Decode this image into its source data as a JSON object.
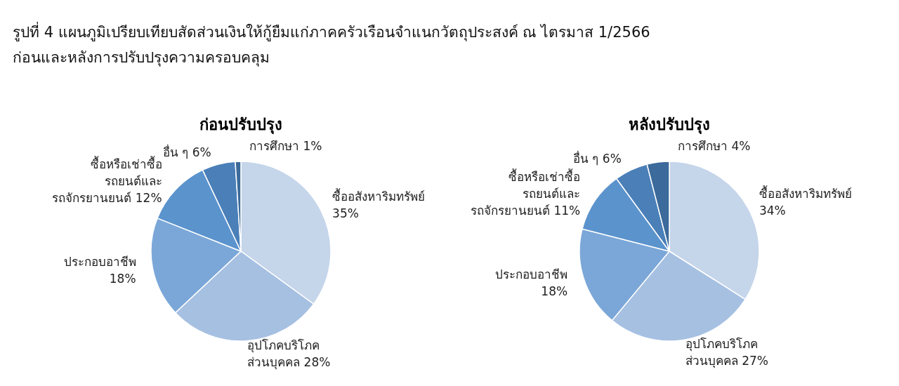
{
  "chart_data": [
    {
      "type": "pie",
      "title": "ก่อนปรับปรุง",
      "annotations": [
        "รูปที่ 4  แผนภูมิเปรียบเทียบสัดส่วนเงินให้กู้ยืมแก่ภาคครัวเรือนจำแนกวัตถุประสงค์ ณ ไตรมาส 1/2566\nก่อนและหลังการปรับปรุงความครอบคลุม"
      ],
      "categories": [
        "ซื้ออสังหาริมทรัพย์",
        "อุปโภคบริโภค\nส่วนบุคคล",
        "ประกอบอาชีพ",
        "ซื้อหรือเช่าซื้อ\nรถยนต์และ\nรถจักรยานยนต์",
        "อื่น ๆ",
        "การศึกษา"
      ],
      "values": [
        35,
        28,
        18,
        12,
        6,
        1
      ],
      "value_labels": [
        "35%",
        "28%",
        "18%",
        "12%",
        "6%",
        "1%"
      ],
      "colors": [
        "#c5d5ea",
        "#a6c0e2",
        "#7ba7d8",
        "#5b93cd",
        "#4a7fb8",
        "#3b6a9b"
      ]
    },
    {
      "type": "pie",
      "title": "หลังปรับปรุง",
      "categories": [
        "ซื้ออสังหาริมทรัพย์",
        "อุปโภคบริโภค\nส่วนบุคคล",
        "ประกอบอาชีพ",
        "ซื้อหรือเช่าซื้อ\nรถยนต์และ\nรถจักรยานยนต์",
        "อื่น ๆ",
        "การศึกษา"
      ],
      "values": [
        34,
        27,
        18,
        11,
        6,
        4
      ],
      "value_labels": [
        "34%",
        "27%",
        "18%",
        "11%",
        "6%",
        "4%"
      ],
      "colors": [
        "#c5d5ea",
        "#a6c0e2",
        "#7ba7d8",
        "#5b93cd",
        "#4a7fb8",
        "#3b6a9b"
      ]
    }
  ]
}
